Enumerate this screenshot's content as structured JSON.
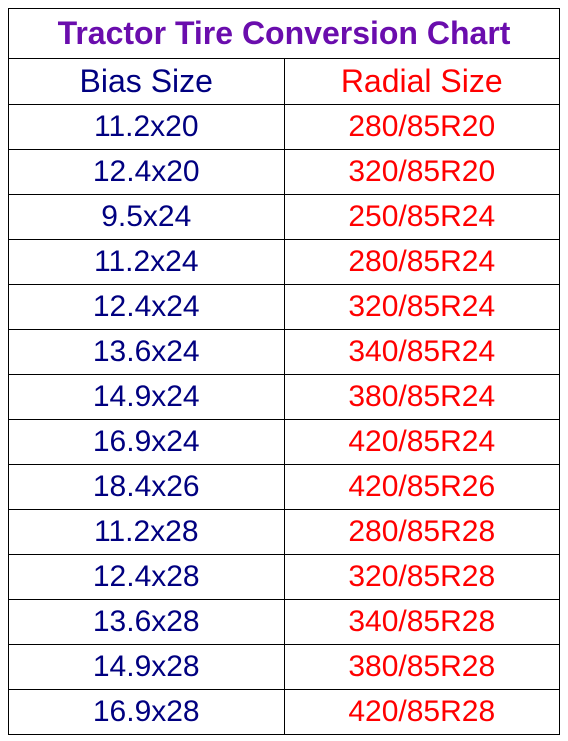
{
  "title": "Tractor Tire Conversion Chart",
  "title_color": "#6a0dad",
  "headers": {
    "bias": "Bias Size",
    "bias_color": "#000080",
    "radial": "Radial Size",
    "radial_color": "#ff0000"
  },
  "data_colors": {
    "bias": "#000080",
    "radial": "#ff0000"
  },
  "font_sizes": {
    "title": 32,
    "header": 32,
    "data": 30
  },
  "border_color": "#000000",
  "background_color": "#ffffff",
  "rows": [
    {
      "bias": "11.2x20",
      "radial": "280/85R20"
    },
    {
      "bias": "12.4x20",
      "radial": "320/85R20"
    },
    {
      "bias": "9.5x24",
      "radial": "250/85R24"
    },
    {
      "bias": "11.2x24",
      "radial": "280/85R24"
    },
    {
      "bias": "12.4x24",
      "radial": "320/85R24"
    },
    {
      "bias": "13.6x24",
      "radial": "340/85R24"
    },
    {
      "bias": "14.9x24",
      "radial": "380/85R24"
    },
    {
      "bias": "16.9x24",
      "radial": "420/85R24"
    },
    {
      "bias": "18.4x26",
      "radial": "420/85R26"
    },
    {
      "bias": "11.2x28",
      "radial": "280/85R28"
    },
    {
      "bias": "12.4x28",
      "radial": "320/85R28"
    },
    {
      "bias": "13.6x28",
      "radial": "340/85R28"
    },
    {
      "bias": "14.9x28",
      "radial": "380/85R28"
    },
    {
      "bias": "16.9x28",
      "radial": "420/85R28"
    }
  ]
}
